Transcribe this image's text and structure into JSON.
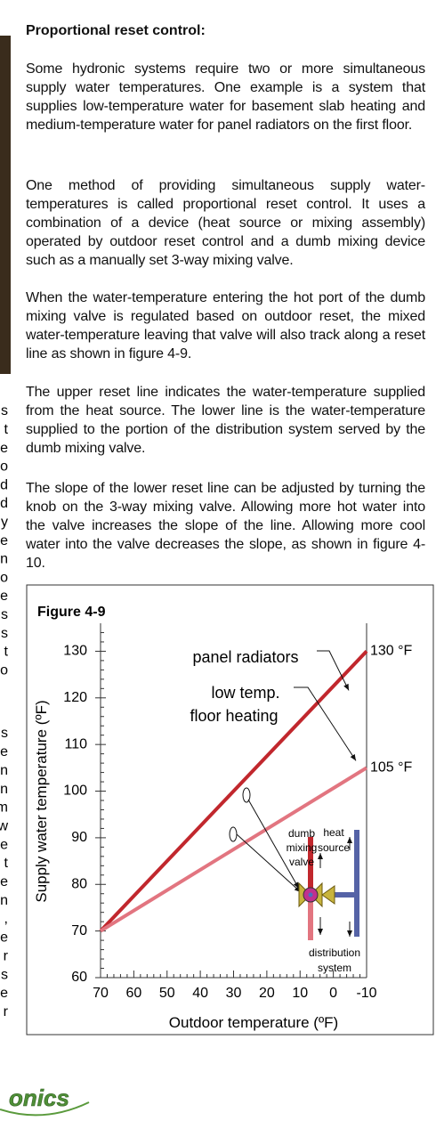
{
  "heading": "Proportional reset control:",
  "paragraphs": [
    "Some hydronic systems require two or more simultaneous supply water temperatures. One example is a system that supplies low-temperature water for basement slab heating and medium-temperature water for panel radiators on the first floor.",
    "One method of providing simultaneous supply water-temperatures is called proportional reset control. It uses a combination of a device (heat source or mixing assembly) operated by outdoor reset control and a dumb mixing device such as a manually set 3-way mixing valve.",
    "When the water-temperature entering the hot port of the dumb mixing valve is regulated based on outdoor reset, the mixed water-temperature leaving that valve will also track along a reset line as shown in figure 4-9.",
    "The upper reset line indicates the water-temperature supplied from the heat source. The lower line is the water-temperature supplied to the portion of the distribution system served by the dumb mixing valve.",
    "The slope of the lower reset line can be adjusted by turning the knob on the 3-way mixing valve. Allowing more hot water into the valve increases the slope of the line. Allowing more cool water into the valve decreases the slope, as shown in figure 4-10."
  ],
  "left_column_fragments": [
    "s",
    "t",
    "e",
    "o",
    "d",
    "d",
    "y",
    "e",
    "n",
    "o",
    "e",
    "s",
    "s",
    "t",
    "o",
    "s",
    "e",
    "n",
    "n",
    "m",
    "w",
    "e",
    "t",
    "e",
    "n",
    ",",
    "e",
    "r",
    "s",
    "e",
    "r"
  ],
  "logo": "onics",
  "chart_data": {
    "type": "line",
    "title": "Figure 4-9",
    "x_label": "Outdoor temperature (ºF)",
    "y_label": "Supply water temperature (ºF)",
    "x": [
      70,
      -10
    ],
    "xlim": [
      70,
      -10
    ],
    "xticks": [
      70,
      60,
      50,
      40,
      30,
      20,
      10,
      0,
      -10
    ],
    "ylim": [
      60,
      136
    ],
    "yticks": [
      60,
      70,
      80,
      90,
      100,
      110,
      120,
      130
    ],
    "series": [
      {
        "name": "panel radiators",
        "color": "#c1272d",
        "values": [
          70,
          130
        ],
        "end_label": "130 °F"
      },
      {
        "name": "low temp. floor heating",
        "color": "#e27580",
        "values": [
          70,
          105
        ],
        "end_label": "105 °F"
      }
    ],
    "annotations": {
      "heat_source": [
        "heat",
        "source"
      ],
      "valve": [
        "dumb",
        "mixing",
        "valve"
      ],
      "distribution": [
        "distribution",
        "system"
      ],
      "floor_heating_lines": [
        "low temp.",
        "floor heating"
      ]
    }
  }
}
